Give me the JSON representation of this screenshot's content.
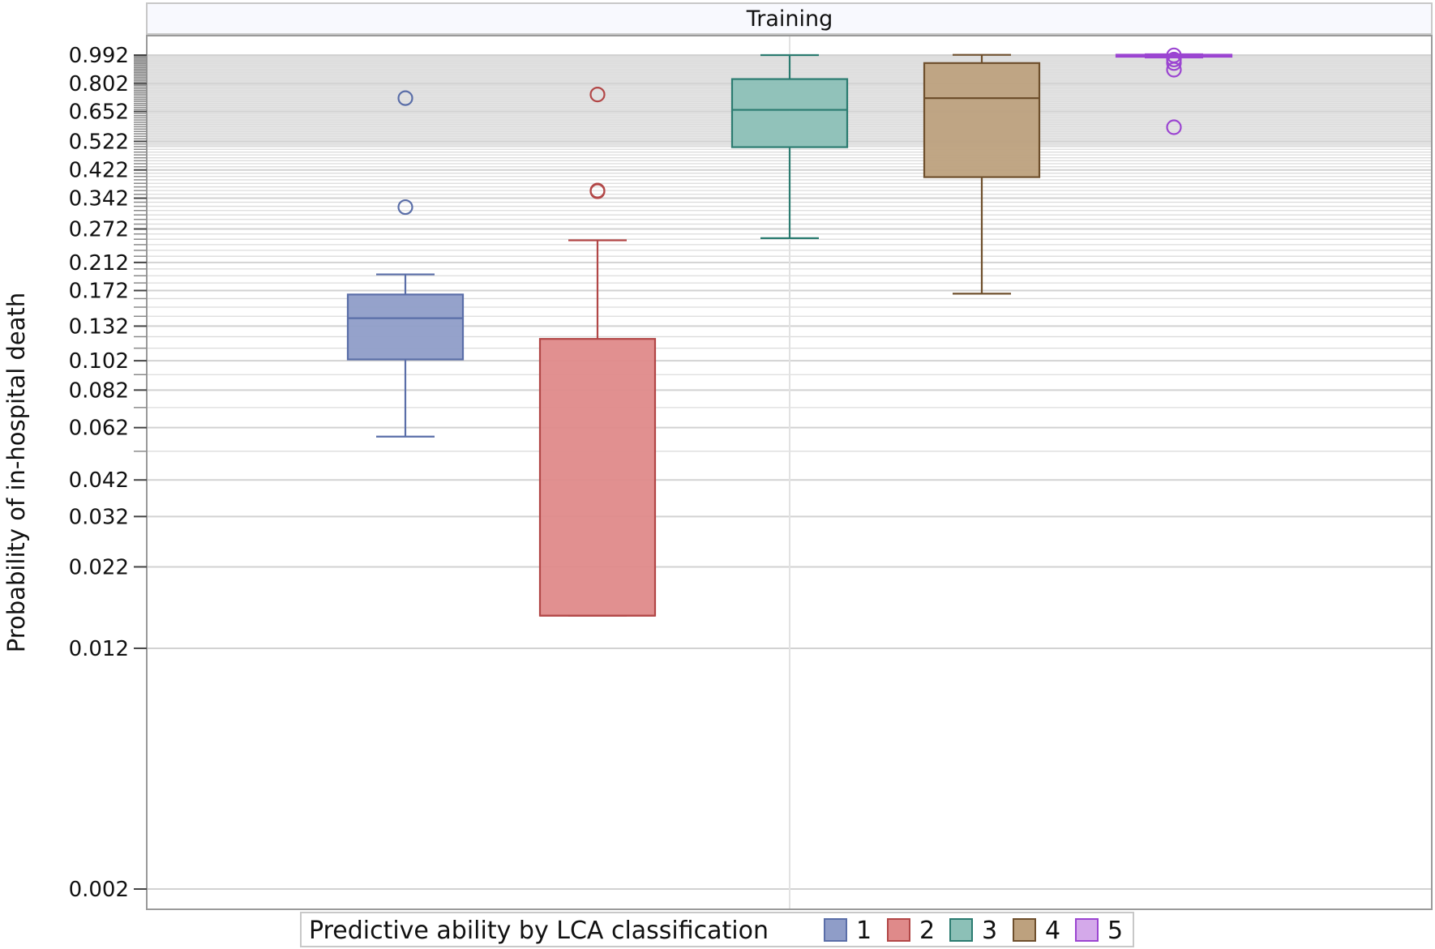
{
  "chart_data": {
    "type": "box",
    "panel_title": "Training",
    "ylabel": "Probability of in-hospital death",
    "yscale": "log",
    "ylim": [
      0.0017,
      1.15
    ],
    "yticks": [
      0.992,
      0.802,
      0.652,
      0.522,
      0.422,
      0.342,
      0.272,
      0.212,
      0.172,
      0.132,
      0.102,
      0.082,
      0.062,
      0.042,
      0.032,
      0.022,
      0.012,
      0.002
    ],
    "ytick_labels": [
      "0.992",
      "0.802",
      "0.652",
      "0.522",
      "0.422",
      "0.342",
      "0.272",
      "0.212",
      "0.172",
      "0.132",
      "0.102",
      "0.082",
      "0.062",
      "0.042",
      "0.032",
      "0.022",
      "0.012",
      "0.002"
    ],
    "grid": true,
    "legend": {
      "title": "Predictive ability by LCA classification",
      "position": "bottom",
      "entries": [
        "1",
        "2",
        "3",
        "4",
        "5"
      ]
    },
    "series": [
      {
        "name": "1",
        "color": "#5a6ea8",
        "fill": "#8f9dc8",
        "whisker_low": 0.058,
        "q1": 0.103,
        "median": 0.14,
        "q3": 0.167,
        "whisker_high": 0.194,
        "outliers": [
          0.72,
          0.32
        ]
      },
      {
        "name": "2",
        "color": "#b24747",
        "fill": "#df8a8a",
        "whisker_low": 0.0153,
        "q1": 0.0153,
        "median": 0.0153,
        "q3": 0.12,
        "whisker_high": 0.25,
        "outliers": [
          0.74,
          0.36,
          0.362
        ]
      },
      {
        "name": "3",
        "color": "#2b7b70",
        "fill": "#8cc0b7",
        "whisker_low": 0.254,
        "q1": 0.5,
        "median": 0.66,
        "q3": 0.83,
        "whisker_high": 0.992,
        "outliers": []
      },
      {
        "name": "4",
        "color": "#6e4f2c",
        "fill": "#bda17e",
        "whisker_low": 0.168,
        "q1": 0.4,
        "median": 0.72,
        "q3": 0.935,
        "whisker_high": 0.994,
        "outliers": []
      },
      {
        "name": "5",
        "color": "#9b45d1",
        "fill": "#d4a9ea",
        "whisker_low": 0.975,
        "q1": 0.982,
        "median": 0.992,
        "q3": 0.995,
        "whisker_high": 0.998,
        "outliers": [
          0.99,
          0.96,
          0.935,
          0.89,
          0.58
        ]
      }
    ]
  }
}
